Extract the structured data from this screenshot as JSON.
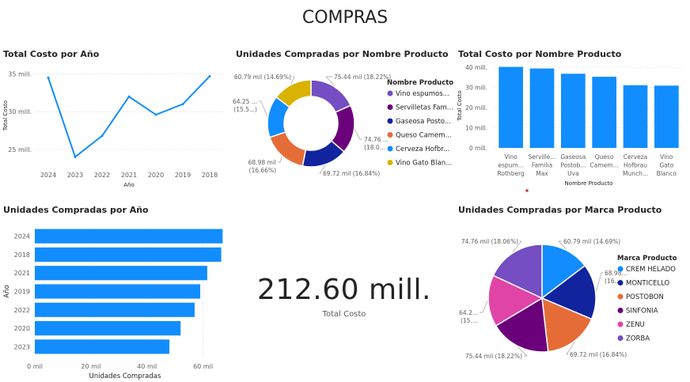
{
  "page_title": "COMPRAS",
  "visuals": {
    "line_title": "Total Costo por Año",
    "donut_title": "Unidades Compradas por Nombre Producto",
    "col_title": "Total Costo por Nombre Producto",
    "hbar_title": "Unidades Compradas por Año",
    "pie_title": "Unidades Compradas por Marca Producto"
  },
  "kpi": {
    "value": "212.60 mill.",
    "label": "Total Costo"
  },
  "colors": {
    "accent": "#118DFF",
    "text": "#252423",
    "axis": "#605e5c",
    "grid": "#e1dfdd"
  },
  "chart_data": [
    {
      "id": "line",
      "type": "line",
      "title": "Total Costo por Año",
      "xlabel": "Año",
      "ylabel": "Total Costo",
      "categories": [
        "2024",
        "2023",
        "2022",
        "2021",
        "2020",
        "2019",
        "2018"
      ],
      "values": [
        34.5,
        24.0,
        26.8,
        32.0,
        29.6,
        31.0,
        34.7
      ],
      "ylim": [
        23,
        36
      ],
      "yticks": [
        25,
        30,
        35
      ],
      "ytick_labels": [
        "25 mill.",
        "30 mill.",
        "35 mill."
      ],
      "grid": true,
      "color": "#118DFF"
    },
    {
      "id": "donut",
      "type": "pie",
      "title": "Unidades Compradas por Nombre Producto",
      "legend_title": "Nombre Producto",
      "legend_position": "right",
      "slices": [
        {
          "name": "Vino espumos...",
          "value": 75.44,
          "label": "75.44 mil (18.22%)",
          "color": "#744EC2"
        },
        {
          "name": "Servilletas Fam...",
          "value": 74.76,
          "label": "74.76 ...\n(18.0...",
          "color": "#6B007B"
        },
        {
          "name": "Gaseosa Posto...",
          "value": 69.72,
          "label": "69.72 mil (16.84%)",
          "color": "#12239E"
        },
        {
          "name": "Queso Camem...",
          "value": 68.98,
          "label": "68.98 mil\n(16.66%)",
          "color": "#E66C37"
        },
        {
          "name": "Cerveza Hofbr...",
          "value": 64.25,
          "label": "64.25 ...\n(15.5...)",
          "color": "#118DFF"
        },
        {
          "name": "Vino Gato Blan...",
          "value": 60.79,
          "label": "60.79 mil (14.69%)",
          "color": "#D9B300"
        }
      ]
    },
    {
      "id": "col",
      "type": "bar",
      "title": "Total Costo por Nombre Producto",
      "xlabel": "Nombre Producto",
      "ylabel": "Total Costo",
      "categories": [
        [
          "Vino",
          "espum...",
          "Rothberg"
        ],
        [
          "Serville...",
          "Familia",
          "Max"
        ],
        [
          "Gaseosa",
          "Postob...",
          "Uva"
        ],
        [
          "Queso",
          "Camem..."
        ],
        [
          "Cerveza",
          "Hofbrau",
          "Munch..."
        ],
        [
          "Vino",
          "Gato",
          "Blanco"
        ]
      ],
      "values": [
        40.2,
        39.4,
        36.8,
        35.3,
        31.1,
        30.9
      ],
      "ylim": [
        0,
        42
      ],
      "yticks": [
        0,
        10,
        20,
        30,
        40
      ],
      "ytick_labels": [
        "0 mill.",
        "10 mill.",
        "20 mill.",
        "30 mill.",
        "40 mill."
      ],
      "grid": true,
      "color": "#118DFF"
    },
    {
      "id": "hbar",
      "type": "bar",
      "orientation": "horizontal",
      "title": "Unidades Compradas por Año",
      "xlabel": "Unidades Compradas",
      "ylabel": "Año",
      "categories": [
        "2024",
        "2018",
        "2021",
        "2019",
        "2022",
        "2020",
        "2023"
      ],
      "values": [
        67.0,
        66.5,
        61.5,
        59.0,
        57.0,
        52.0,
        48.0
      ],
      "xlim": [
        0,
        70
      ],
      "xticks": [
        0,
        20,
        40,
        60
      ],
      "xtick_labels": [
        "0 mil",
        "20 mil",
        "40 mil",
        "60 mil"
      ],
      "color": "#118DFF"
    },
    {
      "id": "pie",
      "type": "pie",
      "title": "Unidades Compradas por Marca Producto",
      "legend_title": "Marca Producto",
      "legend_position": "right",
      "slices": [
        {
          "name": "CREM HELADO",
          "value": 60.79,
          "label": "60.79 mil (14.69%)",
          "color": "#118DFF"
        },
        {
          "name": "MONTICELLO",
          "value": 68.98,
          "label": "68.98...\n(16...",
          "color": "#12239E"
        },
        {
          "name": "POSTOBON",
          "value": 69.72,
          "label": "69.72 mil (16.84%)",
          "color": "#E66C37"
        },
        {
          "name": "SINFONIA",
          "value": 75.44,
          "label": "75.44 mil (18.22%)",
          "color": "#6B007B"
        },
        {
          "name": "ZENU",
          "value": 64.25,
          "label": "64.2...\n(15....",
          "color": "#E044A7"
        },
        {
          "name": "ZORBA",
          "value": 74.76,
          "label": "74.76 mil (18.06%)",
          "color": "#744EC2"
        }
      ]
    }
  ]
}
